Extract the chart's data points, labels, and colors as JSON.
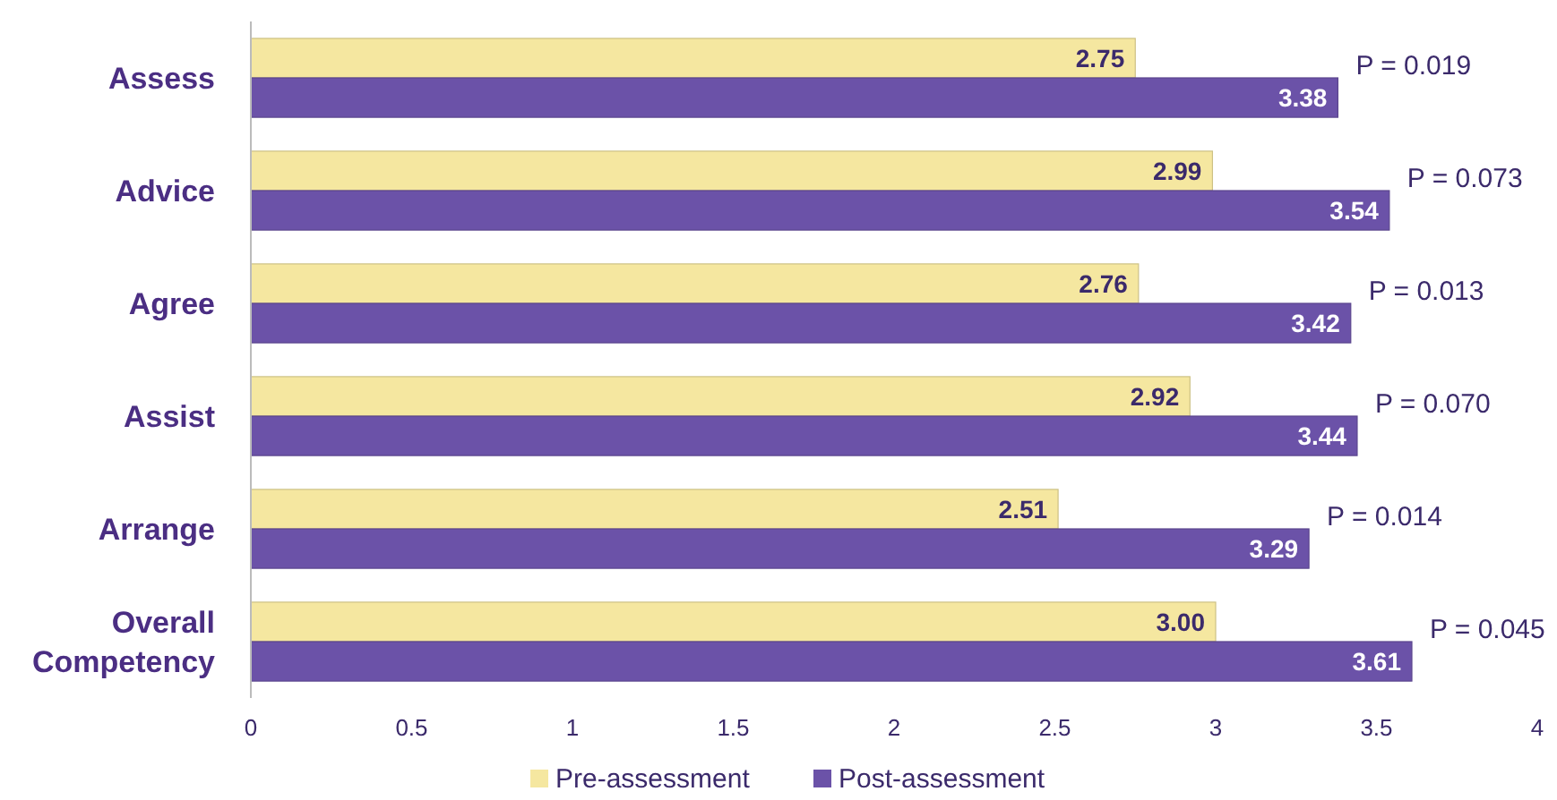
{
  "chart_data": {
    "type": "bar",
    "orientation": "horizontal",
    "categories": [
      "Assess",
      "Advice",
      "Agree",
      "Assist",
      "Arrange",
      "Overall Competency"
    ],
    "series": [
      {
        "name": "Pre-assessment",
        "color": "#f5e7a0",
        "values": [
          2.75,
          2.99,
          2.76,
          2.92,
          2.51,
          3.0
        ]
      },
      {
        "name": "Post-assessment",
        "color": "#6b52a8",
        "values": [
          3.38,
          3.54,
          3.42,
          3.44,
          3.29,
          3.61
        ]
      }
    ],
    "value_labels": [
      [
        "2.75",
        "2.99",
        "2.76",
        "2.92",
        "2.51",
        "3.00"
      ],
      [
        "3.38",
        "3.54",
        "3.42",
        "3.44",
        "3.29",
        "3.61"
      ]
    ],
    "xlim": [
      0,
      4
    ],
    "xticks": [
      0,
      {
        "value": 0.5,
        "label": "0.5"
      },
      1,
      {
        "value": 1.5,
        "label": "1.5"
      },
      2,
      {
        "value": 2.5,
        "label": "2.5"
      },
      3,
      {
        "value": 3.5,
        "label": "3.5"
      },
      4
    ],
    "grid": false,
    "legend": "bottom",
    "annotations": [
      {
        "text": "P = 0.019",
        "x": 3.38,
        "y": "Assess"
      },
      {
        "text": "P = 0.073",
        "x": 3.54,
        "y": "Advice"
      },
      {
        "text": "P = 0.013",
        "x": 3.42,
        "y": "Agree"
      },
      {
        "text": "P = 0.070",
        "x": 3.44,
        "y": "Assist"
      },
      {
        "text": "P = 0.014",
        "x": 3.29,
        "y": "Arrange"
      },
      {
        "text": "P = 0.045",
        "x": 3.61,
        "y": "Overall Competency"
      }
    ]
  }
}
